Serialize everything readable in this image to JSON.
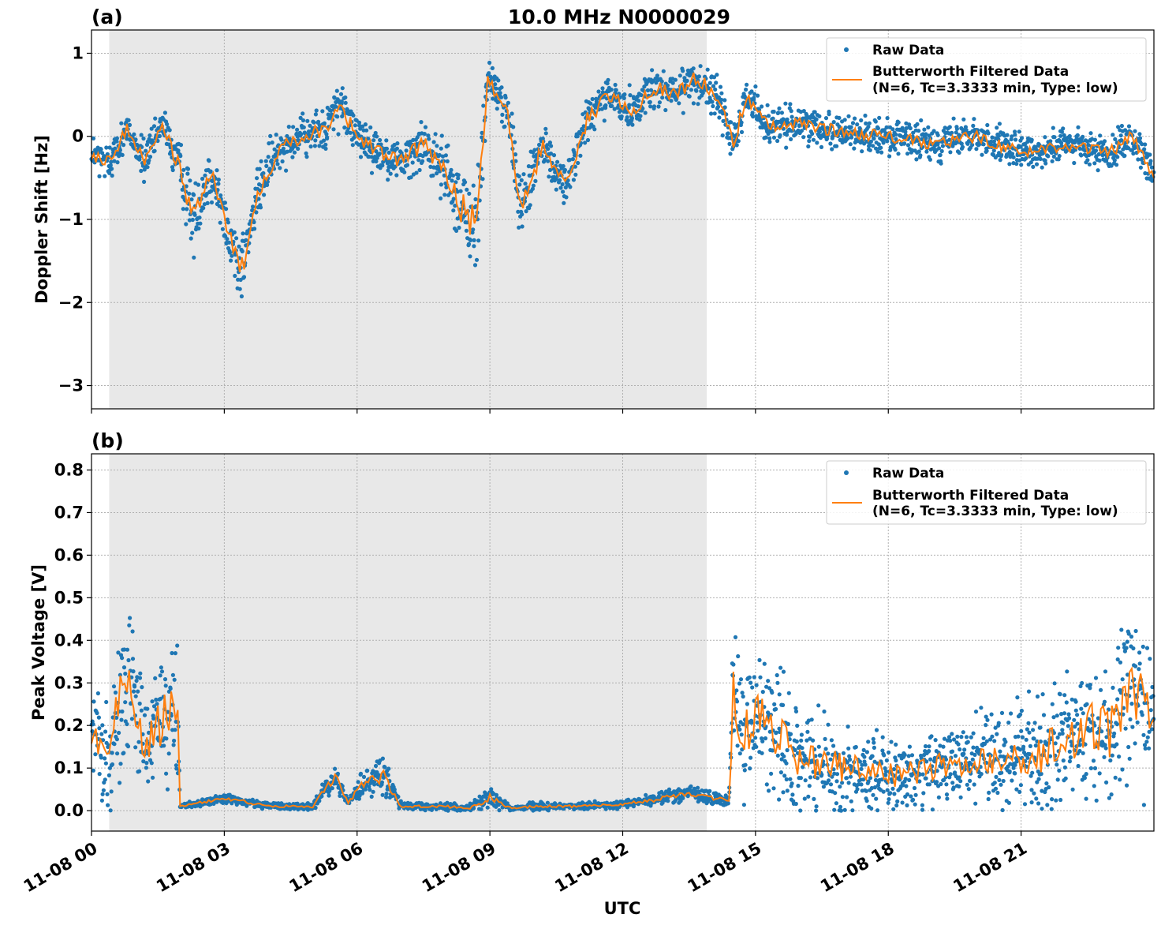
{
  "chart_data": [
    {
      "type": "scatter",
      "panel_label": "(a)",
      "title": "10.0 MHz N0000029",
      "xlabel": "",
      "ylabel": "Doppler Shift [Hz]",
      "xlim": [
        0,
        24
      ],
      "ylim": [
        -3.28,
        1.28
      ],
      "yticks": [
        1,
        0,
        -1,
        -2,
        -3
      ],
      "ytick_labels": [
        "1",
        "0",
        "−1",
        "−2",
        "−3"
      ],
      "xticks": [
        0,
        3,
        6,
        9,
        12,
        15,
        18,
        21
      ],
      "grid": true,
      "shaded_interval_hours": [
        0.4,
        13.9
      ],
      "legend_position": "top-right",
      "legend": [
        "Raw Data",
        "Butterworth Filtered Data",
        "(N=6, Tc=3.3333 min, Type: low)"
      ],
      "series": [
        {
          "name": "Raw Data",
          "style": "points",
          "color": "#1f77b4",
          "x_hours": [
            0,
            0.2,
            0.5,
            0.8,
            1.2,
            1.6,
            2.0,
            2.3,
            2.7,
            3.1,
            3.4,
            3.8,
            4.3,
            4.8,
            5.3,
            5.6,
            6.0,
            6.5,
            7.0,
            7.5,
            8.0,
            8.4,
            8.7,
            8.95,
            9.4,
            9.7,
            10.2,
            10.7,
            11.2,
            11.7,
            12.2,
            12.7,
            13.2,
            13.6,
            13.9,
            14.2,
            14.5,
            14.8,
            15.3,
            16,
            17,
            18,
            19,
            20,
            21,
            22,
            23,
            23.5,
            24
          ],
          "y_hz": [
            -0.2,
            -0.3,
            -0.25,
            0.1,
            -0.3,
            0.15,
            -0.4,
            -1.0,
            -0.4,
            -1.2,
            -1.6,
            -0.6,
            -0.1,
            0.0,
            0.1,
            0.4,
            0.0,
            -0.2,
            -0.3,
            -0.1,
            -0.4,
            -0.9,
            -1.1,
            0.7,
            0.3,
            -0.9,
            -0.1,
            -0.6,
            0.2,
            0.5,
            0.3,
            0.6,
            0.5,
            0.7,
            0.6,
            0.4,
            -0.1,
            0.5,
            0.1,
            0.15,
            0.05,
            0.0,
            -0.1,
            0.0,
            -0.2,
            -0.1,
            -0.2,
            0.0,
            -0.5
          ],
          "spread_hz": [
            0.3,
            0.3,
            0.3,
            0.2,
            0.3,
            0.2,
            0.4,
            0.5,
            0.4,
            0.4,
            0.5,
            0.4,
            0.3,
            0.3,
            0.3,
            0.35,
            0.3,
            0.3,
            0.3,
            0.35,
            0.4,
            0.7,
            0.8,
            0.3,
            0.3,
            0.5,
            0.3,
            0.3,
            0.3,
            0.3,
            0.3,
            0.3,
            0.3,
            0.3,
            0.3,
            0.3,
            0.3,
            0.3,
            0.25,
            0.25,
            0.25,
            0.25,
            0.25,
            0.25,
            0.25,
            0.25,
            0.25,
            0.25,
            0.3
          ]
        },
        {
          "name": "Butterworth Filtered Data",
          "style": "line",
          "color": "#ff7f0e",
          "x_hours": [
            0,
            0.2,
            0.5,
            0.8,
            1.2,
            1.6,
            2.0,
            2.3,
            2.7,
            3.1,
            3.4,
            3.8,
            4.3,
            4.8,
            5.3,
            5.6,
            6.0,
            6.5,
            7.0,
            7.5,
            8.0,
            8.4,
            8.7,
            8.95,
            9.4,
            9.7,
            10.2,
            10.7,
            11.2,
            11.7,
            12.2,
            12.7,
            13.2,
            13.6,
            13.9,
            14.2,
            14.5,
            14.8,
            15.3,
            16,
            17,
            18,
            19,
            20,
            21,
            22,
            23,
            23.5,
            24
          ],
          "y_hz": [
            -0.2,
            -0.3,
            -0.25,
            0.1,
            -0.3,
            0.15,
            -0.4,
            -1.0,
            -0.4,
            -1.2,
            -1.6,
            -0.6,
            -0.1,
            0.0,
            0.1,
            0.4,
            0.0,
            -0.2,
            -0.3,
            -0.1,
            -0.4,
            -0.9,
            -1.1,
            0.7,
            0.3,
            -0.9,
            -0.1,
            -0.6,
            0.2,
            0.5,
            0.3,
            0.6,
            0.5,
            0.7,
            0.6,
            0.4,
            -0.1,
            0.5,
            0.1,
            0.15,
            0.05,
            0.0,
            -0.1,
            0.0,
            -0.2,
            -0.1,
            -0.2,
            0.0,
            -0.5
          ]
        }
      ]
    },
    {
      "type": "scatter",
      "panel_label": "(b)",
      "title": "",
      "xlabel": "UTC",
      "ylabel": "Peak Voltage [V]",
      "xlim": [
        0,
        24
      ],
      "ylim": [
        -0.048,
        0.838
      ],
      "yticks": [
        0.8,
        0.7,
        0.6,
        0.5,
        0.4,
        0.3,
        0.2,
        0.1,
        0.0
      ],
      "ytick_labels": [
        "0.8",
        "0.7",
        "0.6",
        "0.5",
        "0.4",
        "0.3",
        "0.2",
        "0.1",
        "0.0"
      ],
      "xticks": [
        0,
        3,
        6,
        9,
        12,
        15,
        18,
        21
      ],
      "xtick_labels": [
        "11-08 00",
        "11-08 03",
        "11-08 06",
        "11-08 09",
        "11-08 12",
        "11-08 15",
        "11-08 18",
        "11-08 21"
      ],
      "grid": true,
      "shaded_interval_hours": [
        0.4,
        13.9
      ],
      "legend_position": "top-right",
      "legend": [
        "Raw Data",
        "Butterworth Filtered Data",
        "(N=6, Tc=3.3333 min, Type: low)"
      ],
      "series": [
        {
          "name": "Raw Data",
          "style": "points",
          "color": "#1f77b4",
          "x_hours": [
            0,
            0.3,
            0.6,
            0.9,
            1.2,
            1.5,
            1.8,
            1.95,
            2.0,
            3.0,
            4.0,
            5.0,
            5.5,
            5.8,
            6.2,
            6.6,
            7.0,
            8.0,
            8.5,
            9.0,
            9.5,
            10.0,
            11.0,
            12.0,
            13.0,
            13.5,
            14.0,
            14.4,
            14.5,
            14.7,
            15.0,
            15.5,
            16.0,
            17.0,
            18.0,
            19.0,
            20.0,
            21.0,
            22.0,
            22.5,
            23.0,
            23.5,
            24
          ],
          "y_v": [
            0.2,
            0.12,
            0.25,
            0.3,
            0.15,
            0.2,
            0.25,
            0.18,
            0.01,
            0.03,
            0.01,
            0.01,
            0.08,
            0.02,
            0.07,
            0.08,
            0.01,
            0.01,
            0.005,
            0.03,
            0.005,
            0.01,
            0.01,
            0.015,
            0.03,
            0.04,
            0.03,
            0.025,
            0.28,
            0.18,
            0.22,
            0.18,
            0.12,
            0.1,
            0.08,
            0.1,
            0.12,
            0.13,
            0.15,
            0.2,
            0.18,
            0.3,
            0.2
          ],
          "spread_v": [
            0.15,
            0.15,
            0.2,
            0.22,
            0.15,
            0.2,
            0.2,
            0.2,
            0.005,
            0.015,
            0.01,
            0.01,
            0.04,
            0.01,
            0.05,
            0.05,
            0.01,
            0.01,
            0.01,
            0.03,
            0.005,
            0.01,
            0.01,
            0.01,
            0.02,
            0.02,
            0.02,
            0.01,
            0.2,
            0.18,
            0.2,
            0.18,
            0.14,
            0.12,
            0.1,
            0.1,
            0.12,
            0.15,
            0.18,
            0.2,
            0.2,
            0.25,
            0.2
          ]
        },
        {
          "name": "Butterworth Filtered Data",
          "style": "line",
          "color": "#ff7f0e",
          "x_hours": [
            0,
            0.3,
            0.6,
            0.9,
            1.2,
            1.5,
            1.8,
            1.95,
            2.0,
            3.0,
            4.0,
            5.0,
            5.5,
            5.8,
            6.2,
            6.6,
            7.0,
            8.0,
            8.5,
            9.0,
            9.5,
            10.0,
            11.0,
            12.0,
            13.0,
            13.5,
            14.0,
            14.4,
            14.5,
            14.7,
            15.0,
            15.5,
            16.0,
            17.0,
            18.0,
            19.0,
            20.0,
            21.0,
            22.0,
            22.5,
            23.0,
            23.5,
            24
          ],
          "y_v": [
            0.2,
            0.12,
            0.25,
            0.3,
            0.15,
            0.2,
            0.25,
            0.18,
            0.01,
            0.03,
            0.01,
            0.01,
            0.08,
            0.02,
            0.07,
            0.08,
            0.01,
            0.01,
            0.005,
            0.03,
            0.005,
            0.01,
            0.01,
            0.015,
            0.03,
            0.04,
            0.03,
            0.025,
            0.28,
            0.18,
            0.22,
            0.18,
            0.12,
            0.1,
            0.08,
            0.1,
            0.12,
            0.13,
            0.15,
            0.2,
            0.18,
            0.3,
            0.2
          ]
        }
      ]
    }
  ]
}
